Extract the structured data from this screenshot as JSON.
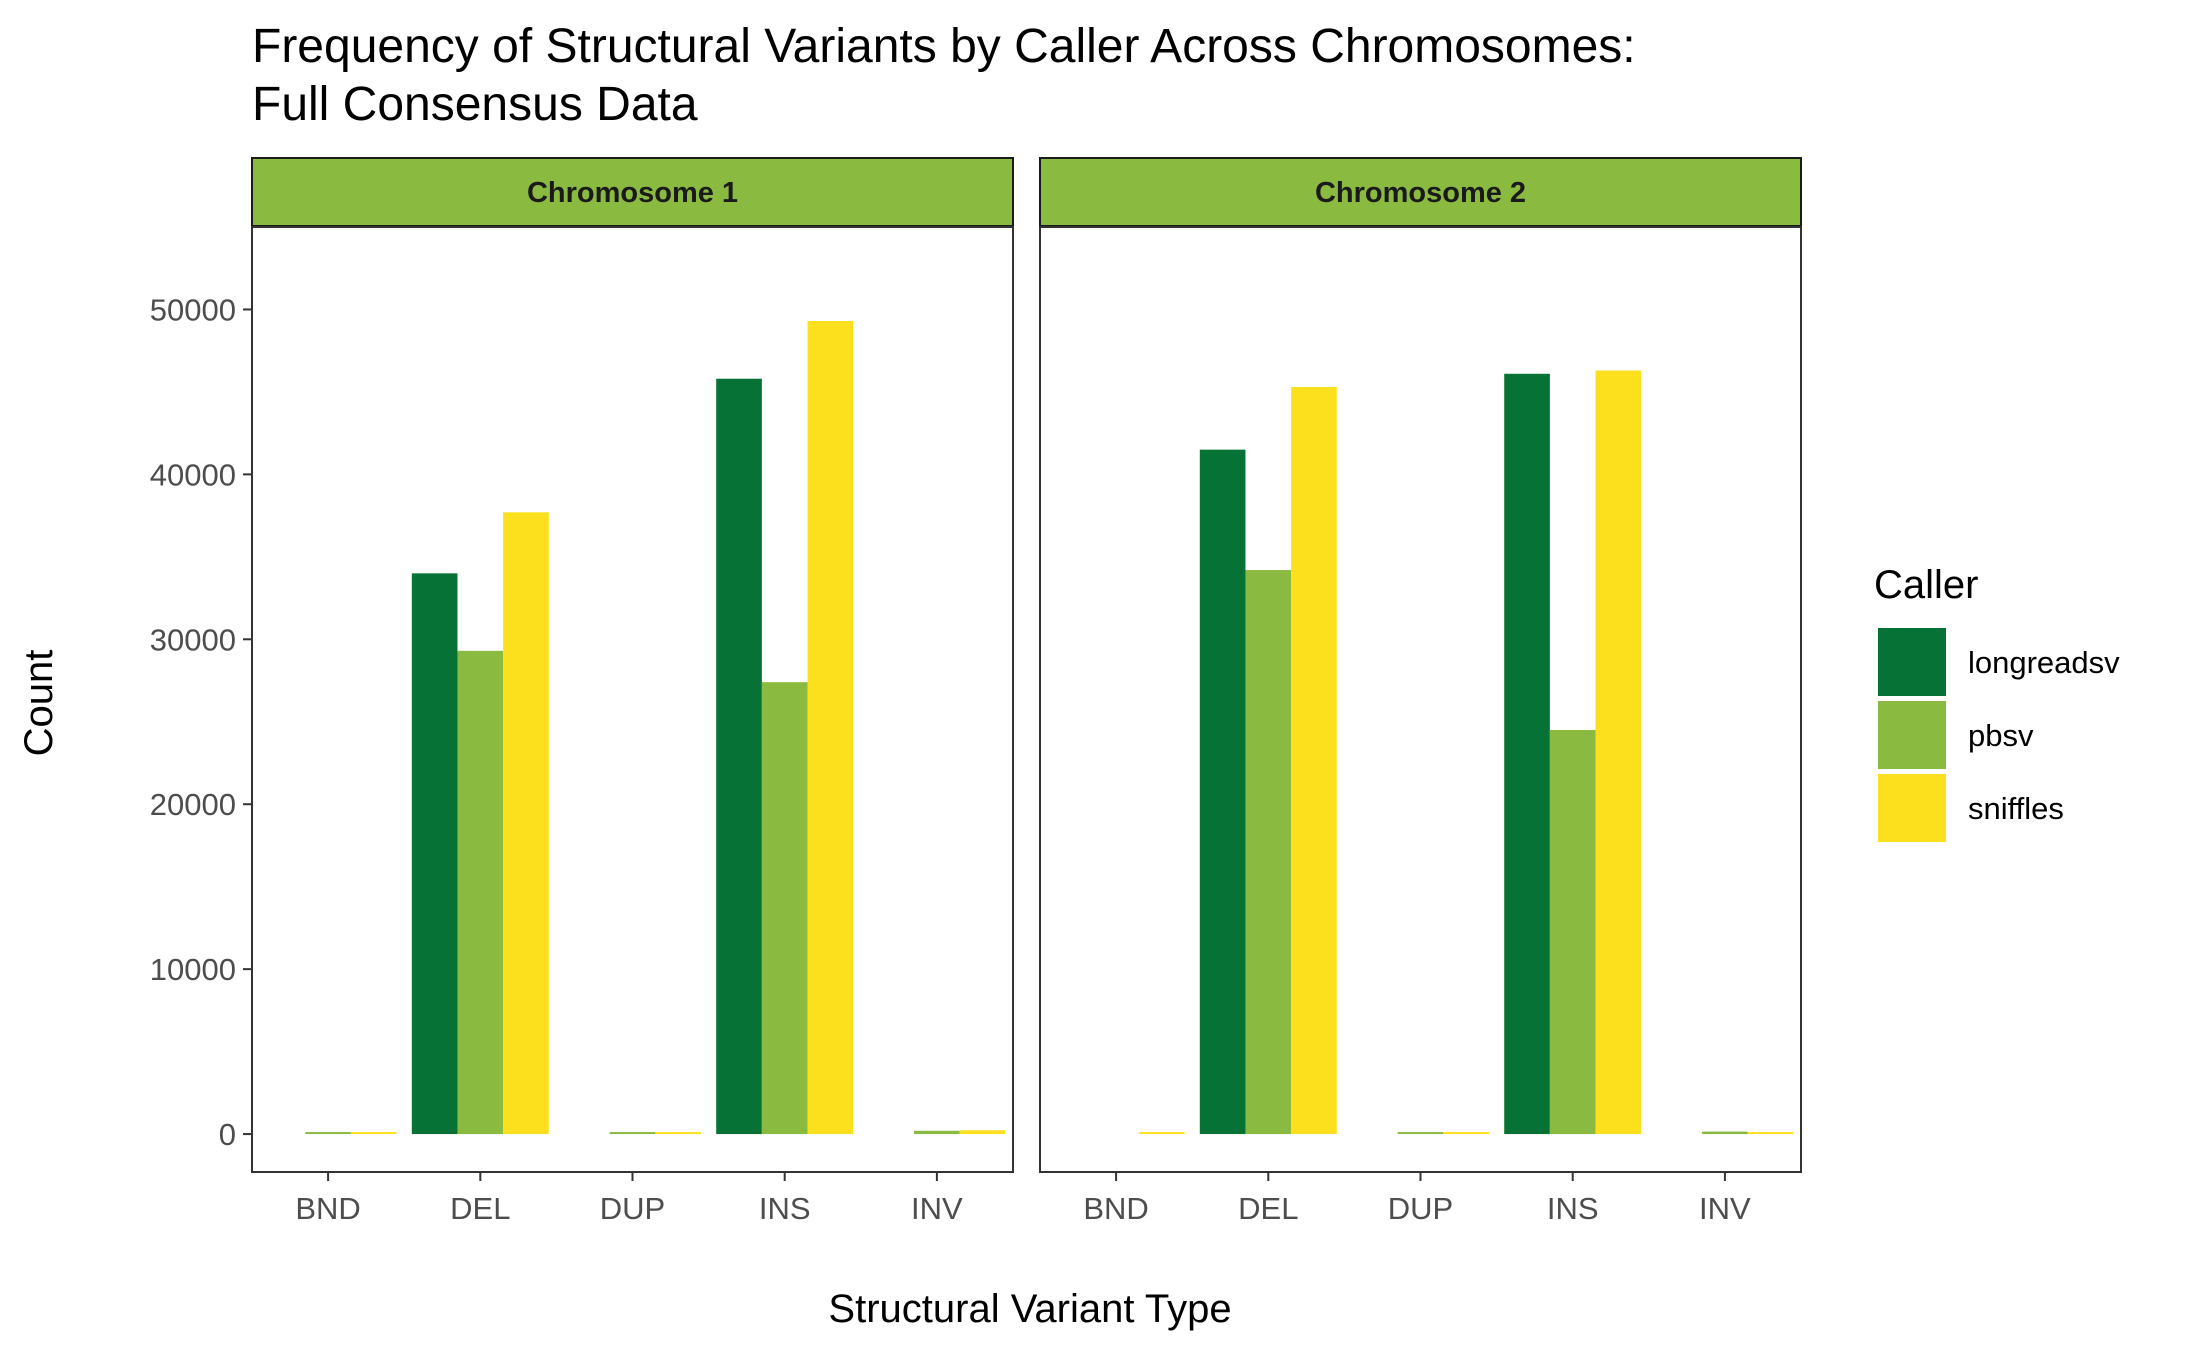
{
  "colors": {
    "longreadsv": "#077235",
    "pbsv": "#8BBA41",
    "sniffles": "#FCE01E",
    "strip_fill": "#8BBA41",
    "panel_border": "#333333",
    "tick_text": "#4d4d4d"
  },
  "chart_data": {
    "type": "bar",
    "title_lines": [
      "Frequency of Structural Variants by Caller Across Chromosomes:",
      "Full Consensus Data"
    ],
    "xlabel": "Structural Variant Type",
    "ylabel": "Count",
    "ylim": [
      -2300,
      55000
    ],
    "yticks": [
      0,
      10000,
      20000,
      30000,
      40000,
      50000
    ],
    "categories": [
      "BND",
      "DEL",
      "DUP",
      "INS",
      "INV"
    ],
    "legend": {
      "title": "Caller",
      "position": "right",
      "entries": [
        "longreadsv",
        "pbsv",
        "sniffles"
      ]
    },
    "grid": false,
    "panels": [
      {
        "label": "Chromosome 1",
        "series": [
          {
            "name": "longreadsv",
            "values": [
              0,
              34000,
              0,
              45800,
              0
            ]
          },
          {
            "name": "pbsv",
            "values": [
              30,
              29300,
              80,
              27400,
              200
            ]
          },
          {
            "name": "sniffles",
            "values": [
              40,
              37700,
              60,
              49300,
              230
            ]
          }
        ]
      },
      {
        "label": "Chromosome 2",
        "series": [
          {
            "name": "longreadsv",
            "values": [
              0,
              41500,
              0,
              46100,
              0
            ]
          },
          {
            "name": "pbsv",
            "values": [
              0,
              34200,
              70,
              24500,
              150
            ]
          },
          {
            "name": "sniffles",
            "values": [
              30,
              45300,
              50,
              46300,
              120
            ]
          }
        ]
      }
    ]
  }
}
